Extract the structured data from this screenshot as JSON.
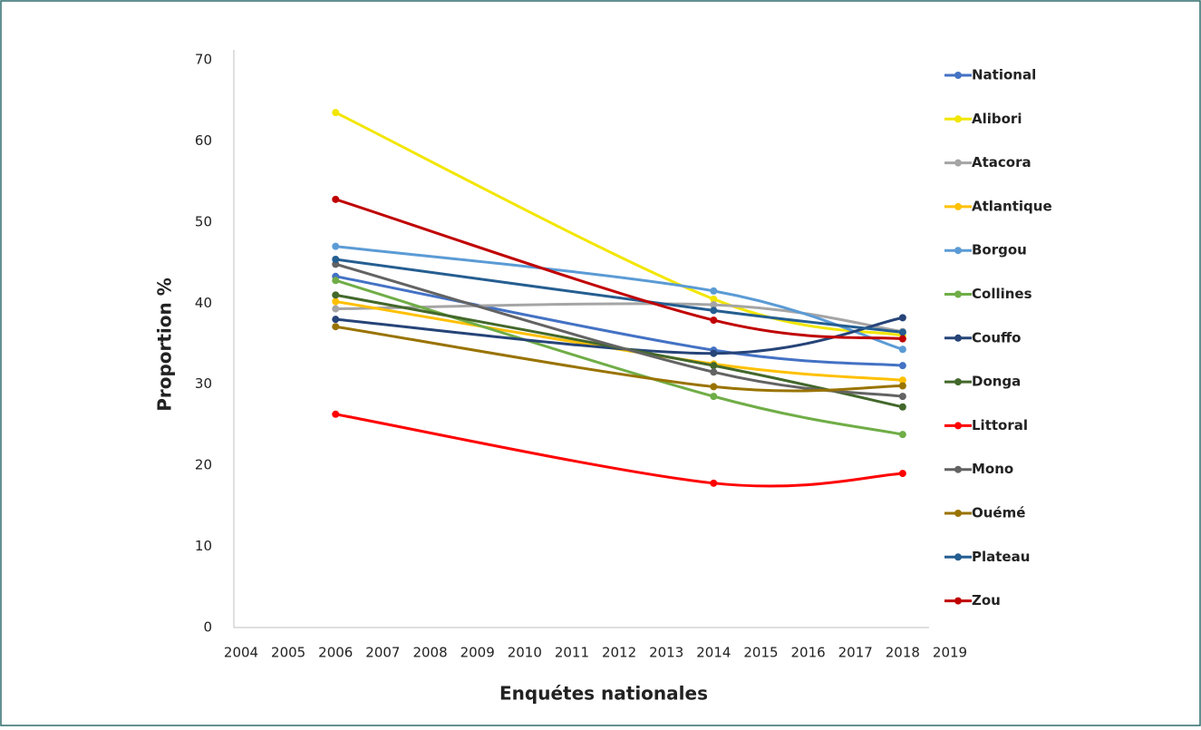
{
  "chart_data": {
    "type": "line",
    "smooth": true,
    "x_label": "Enquétes nationales",
    "y_label": "Proportion %",
    "x": [
      2006,
      2014,
      2018
    ],
    "xlim": [
      2004,
      2019
    ],
    "xticks": [
      2004,
      2005,
      2006,
      2007,
      2008,
      2009,
      2010,
      2011,
      2012,
      2013,
      2014,
      2015,
      2016,
      2017,
      2018,
      2019
    ],
    "ylim": [
      0,
      70
    ],
    "yticks": [
      0,
      10,
      20,
      30,
      40,
      50,
      60,
      70
    ],
    "series": [
      {
        "name": "National",
        "color": "#4472c4",
        "values": [
          43.3,
          34.2,
          32.3
        ]
      },
      {
        "name": "Alibori",
        "color": "#f2e600",
        "values": [
          63.5,
          40.5,
          36.0
        ]
      },
      {
        "name": "Atacora",
        "color": "#a5a5a5",
        "values": [
          39.3,
          39.8,
          36.5
        ]
      },
      {
        "name": "Atlantique",
        "color": "#ffc000",
        "values": [
          40.2,
          32.5,
          30.5
        ]
      },
      {
        "name": "Borgou",
        "color": "#5b9bd5",
        "values": [
          47.0,
          41.5,
          34.3
        ]
      },
      {
        "name": "Collines",
        "color": "#70ad47",
        "values": [
          42.8,
          28.5,
          23.8
        ]
      },
      {
        "name": "Couffo",
        "color": "#264478",
        "values": [
          38.0,
          33.8,
          38.2
        ]
      },
      {
        "name": "Donga",
        "color": "#43682b",
        "values": [
          41.0,
          32.3,
          27.2
        ]
      },
      {
        "name": "Littoral",
        "color": "#ff0000",
        "values": [
          26.3,
          17.8,
          19.0
        ]
      },
      {
        "name": "Mono",
        "color": "#636363",
        "values": [
          44.8,
          31.5,
          28.5
        ]
      },
      {
        "name": "Ouémé",
        "color": "#997300",
        "values": [
          37.1,
          29.7,
          29.8
        ]
      },
      {
        "name": "Plateau",
        "color": "#255e91",
        "values": [
          45.4,
          39.1,
          36.4
        ]
      },
      {
        "name": "Zou",
        "color": "#c00000",
        "values": [
          52.8,
          37.9,
          35.6
        ]
      }
    ]
  }
}
